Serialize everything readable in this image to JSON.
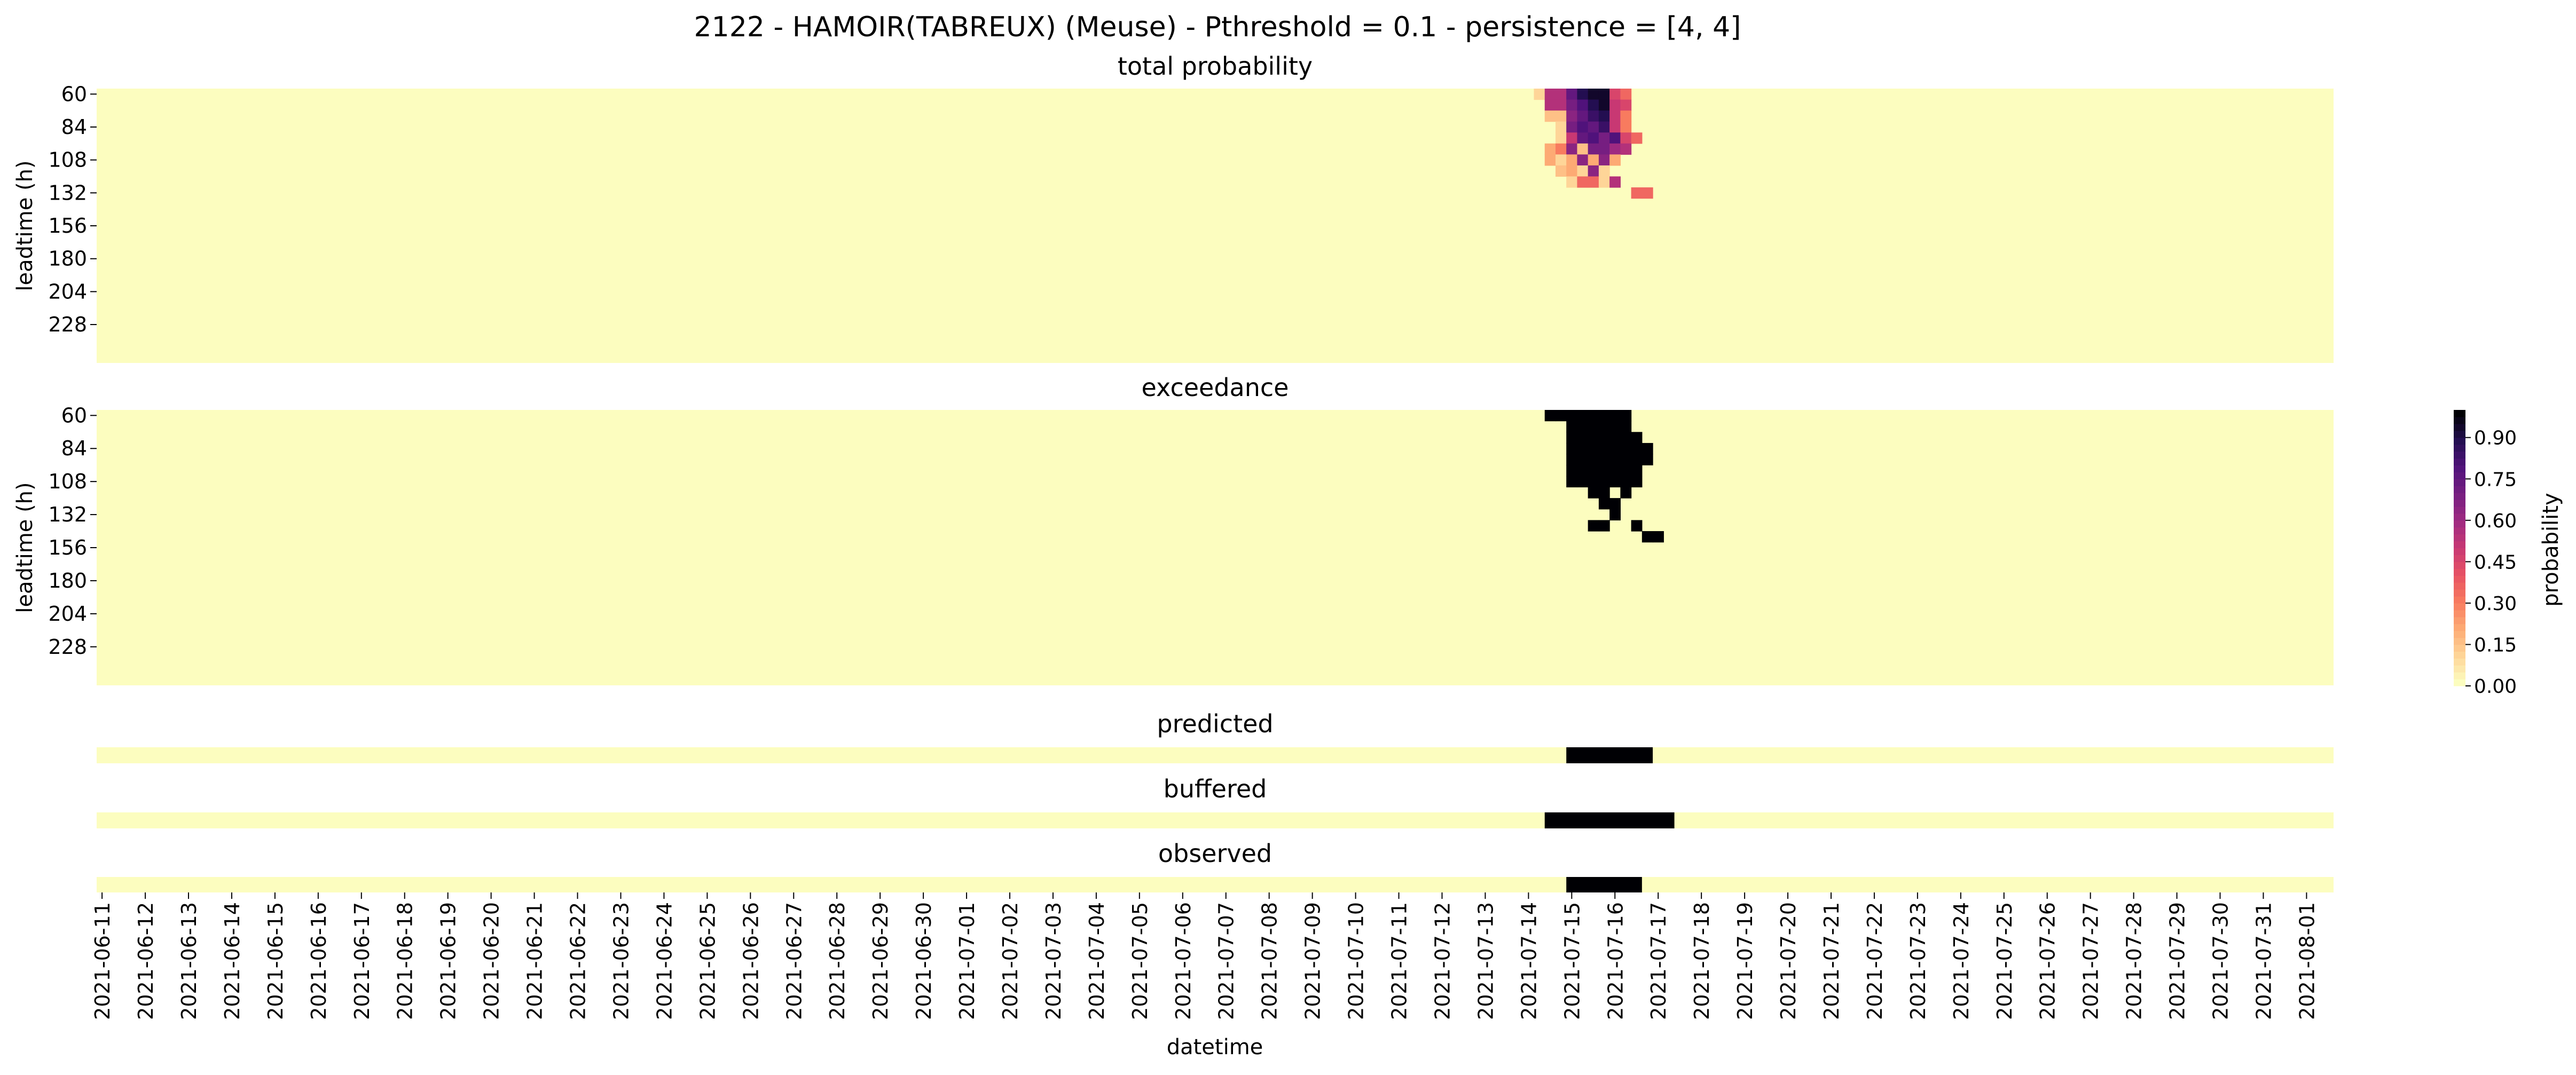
{
  "figure": {
    "suptitle": "2122 - HAMOIR(TABREUX) (Meuse) - Pthreshold = 0.1 - persistence = [4, 4]",
    "xlabel": "datetime",
    "colorbar_label": "probability",
    "colorbar_ticks": [
      "0.00",
      "0.15",
      "0.30",
      "0.45",
      "0.60",
      "0.75",
      "0.90"
    ]
  },
  "chart_data": [
    {
      "type": "heatmap",
      "title": "total probability",
      "ylabel": "leadtime (h)",
      "y_tick_labels": [
        "60",
        "84",
        "108",
        "132",
        "156",
        "180",
        "204",
        "228"
      ],
      "rows": 25,
      "cols": 207,
      "x_tick_labels": [
        "2021-06-11",
        "2021-06-12",
        "2021-06-13",
        "2021-06-14",
        "2021-06-15",
        "2021-06-16",
        "2021-06-17",
        "2021-06-18",
        "2021-06-19",
        "2021-06-20",
        "2021-06-21",
        "2021-06-22",
        "2021-06-23",
        "2021-06-24",
        "2021-06-25",
        "2021-06-26",
        "2021-06-27",
        "2021-06-28",
        "2021-06-29",
        "2021-06-30",
        "2021-07-01",
        "2021-07-02",
        "2021-07-03",
        "2021-07-04",
        "2021-07-05",
        "2021-07-06",
        "2021-07-07",
        "2021-07-08",
        "2021-07-09",
        "2021-07-10",
        "2021-07-11",
        "2021-07-12",
        "2021-07-13",
        "2021-07-14",
        "2021-07-15",
        "2021-07-16",
        "2021-07-17",
        "2021-07-18",
        "2021-07-19",
        "2021-07-20",
        "2021-07-21",
        "2021-07-22",
        "2021-07-23",
        "2021-07-24",
        "2021-07-25",
        "2021-07-26",
        "2021-07-27",
        "2021-07-28",
        "2021-07-29",
        "2021-07-30",
        "2021-07-31",
        "2021-08-01"
      ],
      "colormap": "magma_r",
      "vmin": 0,
      "vmax": 1,
      "cells": [
        [
          133,
          0,
          0.1
        ],
        [
          134,
          0,
          0.55
        ],
        [
          135,
          0,
          0.55
        ],
        [
          136,
          0,
          0.75
        ],
        [
          137,
          0,
          0.9
        ],
        [
          138,
          0,
          0.95
        ],
        [
          139,
          0,
          0.95
        ],
        [
          140,
          0,
          0.45
        ],
        [
          141,
          0,
          0.35
        ],
        [
          134,
          1,
          0.55
        ],
        [
          135,
          1,
          0.55
        ],
        [
          136,
          1,
          0.7
        ],
        [
          137,
          1,
          0.8
        ],
        [
          138,
          1,
          0.9
        ],
        [
          139,
          1,
          0.95
        ],
        [
          140,
          1,
          0.5
        ],
        [
          141,
          1,
          0.45
        ],
        [
          134,
          2,
          0.15
        ],
        [
          135,
          2,
          0.15
        ],
        [
          136,
          2,
          0.65
        ],
        [
          137,
          2,
          0.75
        ],
        [
          138,
          2,
          0.85
        ],
        [
          139,
          2,
          0.9
        ],
        [
          140,
          2,
          0.5
        ],
        [
          141,
          2,
          0.3
        ],
        [
          135,
          3,
          0.1
        ],
        [
          136,
          3,
          0.7
        ],
        [
          137,
          3,
          0.8
        ],
        [
          138,
          3,
          0.75
        ],
        [
          139,
          3,
          0.85
        ],
        [
          140,
          3,
          0.5
        ],
        [
          141,
          3,
          0.3
        ],
        [
          135,
          4,
          0.1
        ],
        [
          136,
          4,
          0.5
        ],
        [
          137,
          4,
          0.75
        ],
        [
          138,
          4,
          0.8
        ],
        [
          139,
          4,
          0.7
        ],
        [
          140,
          4,
          0.8
        ],
        [
          141,
          4,
          0.45
        ],
        [
          142,
          4,
          0.35
        ],
        [
          134,
          5,
          0.2
        ],
        [
          135,
          5,
          0.3
        ],
        [
          136,
          5,
          0.65
        ],
        [
          137,
          5,
          0.15
        ],
        [
          138,
          5,
          0.7
        ],
        [
          139,
          5,
          0.7
        ],
        [
          140,
          5,
          0.6
        ],
        [
          141,
          5,
          0.55
        ],
        [
          134,
          6,
          0.2
        ],
        [
          135,
          6,
          0.1
        ],
        [
          136,
          6,
          0.2
        ],
        [
          137,
          6,
          0.65
        ],
        [
          138,
          6,
          0.2
        ],
        [
          139,
          6,
          0.65
        ],
        [
          140,
          6,
          0.2
        ],
        [
          135,
          7,
          0.15
        ],
        [
          136,
          7,
          0.2
        ],
        [
          137,
          7,
          0.1
        ],
        [
          138,
          7,
          0.65
        ],
        [
          139,
          7,
          0.1
        ],
        [
          136,
          8,
          0.1
        ],
        [
          137,
          8,
          0.35
        ],
        [
          138,
          8,
          0.35
        ],
        [
          139,
          8,
          0.1
        ],
        [
          140,
          8,
          0.55
        ],
        [
          142,
          9,
          0.35
        ],
        [
          143,
          9,
          0.35
        ]
      ]
    },
    {
      "type": "heatmap",
      "title": "exceedance",
      "ylabel": "leadtime (h)",
      "y_tick_labels": [
        "60",
        "84",
        "108",
        "132",
        "156",
        "180",
        "204",
        "228"
      ],
      "rows": 25,
      "cols": 207,
      "colormap": "magma_r",
      "cells_value": 1,
      "cells": [
        [
          134,
          0
        ],
        [
          135,
          0
        ],
        [
          136,
          0
        ],
        [
          137,
          0
        ],
        [
          138,
          0
        ],
        [
          139,
          0
        ],
        [
          140,
          0
        ],
        [
          141,
          0
        ],
        [
          136,
          1
        ],
        [
          137,
          1
        ],
        [
          138,
          1
        ],
        [
          139,
          1
        ],
        [
          140,
          1
        ],
        [
          141,
          1
        ],
        [
          136,
          2
        ],
        [
          137,
          2
        ],
        [
          138,
          2
        ],
        [
          139,
          2
        ],
        [
          140,
          2
        ],
        [
          141,
          2
        ],
        [
          142,
          2
        ],
        [
          136,
          3
        ],
        [
          137,
          3
        ],
        [
          138,
          3
        ],
        [
          139,
          3
        ],
        [
          140,
          3
        ],
        [
          141,
          3
        ],
        [
          142,
          3
        ],
        [
          143,
          3
        ],
        [
          136,
          4
        ],
        [
          137,
          4
        ],
        [
          138,
          4
        ],
        [
          139,
          4
        ],
        [
          140,
          4
        ],
        [
          141,
          4
        ],
        [
          142,
          4
        ],
        [
          143,
          4
        ],
        [
          136,
          5
        ],
        [
          137,
          5
        ],
        [
          138,
          5
        ],
        [
          139,
          5
        ],
        [
          140,
          5
        ],
        [
          141,
          5
        ],
        [
          142,
          5
        ],
        [
          136,
          6
        ],
        [
          137,
          6
        ],
        [
          138,
          6
        ],
        [
          139,
          6
        ],
        [
          140,
          6
        ],
        [
          141,
          6
        ],
        [
          142,
          6
        ],
        [
          138,
          7
        ],
        [
          139,
          7
        ],
        [
          141,
          7
        ],
        [
          139,
          8
        ],
        [
          140,
          8
        ],
        [
          140,
          9
        ],
        [
          138,
          10
        ],
        [
          139,
          10
        ],
        [
          142,
          10
        ],
        [
          143,
          11
        ],
        [
          144,
          11
        ]
      ]
    },
    {
      "type": "heatmap",
      "title": "predicted",
      "rows": 1,
      "cols": 207,
      "colormap": "magma_r",
      "on_ranges": [
        [
          136,
          143
        ]
      ]
    },
    {
      "type": "heatmap",
      "title": "buffered",
      "rows": 1,
      "cols": 207,
      "colormap": "magma_r",
      "on_ranges": [
        [
          134,
          145
        ]
      ]
    },
    {
      "type": "heatmap",
      "title": "observed",
      "rows": 1,
      "cols": 207,
      "colormap": "magma_r",
      "on_ranges": [
        [
          136,
          142
        ]
      ]
    }
  ]
}
